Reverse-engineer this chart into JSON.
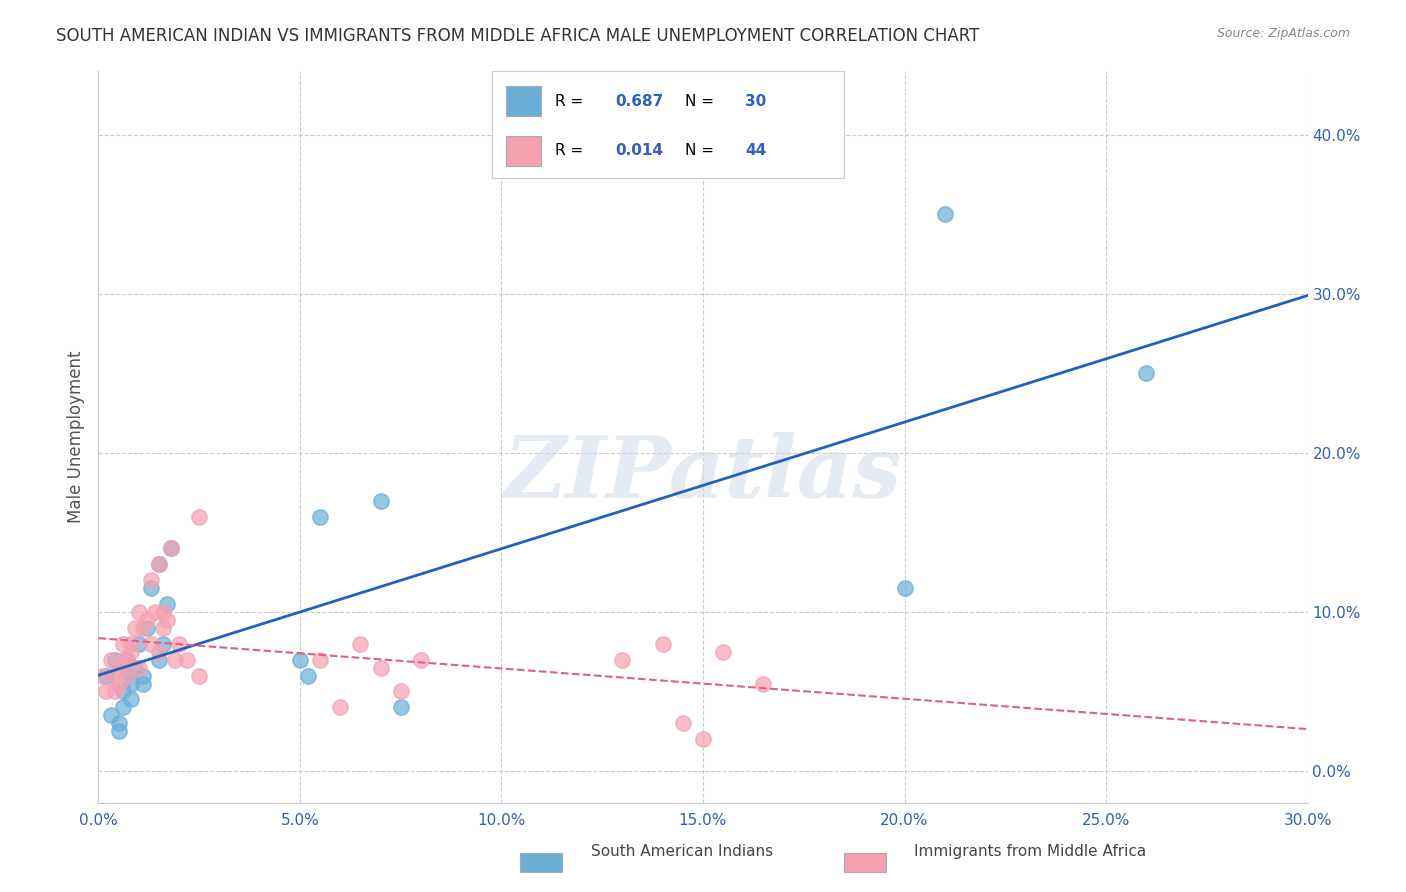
{
  "title": "SOUTH AMERICAN INDIAN VS IMMIGRANTS FROM MIDDLE AFRICA MALE UNEMPLOYMENT CORRELATION CHART",
  "source": "Source: ZipAtlas.com",
  "ylabel": "Male Unemployment",
  "watermark": "ZIPatlas",
  "xlim": [
    0.0,
    0.3
  ],
  "ylim": [
    -0.02,
    0.44
  ],
  "xticks": [
    0.0,
    0.05,
    0.1,
    0.15,
    0.2,
    0.25,
    0.3
  ],
  "yticks": [
    0.0,
    0.1,
    0.2,
    0.3,
    0.4
  ],
  "blue_R": 0.687,
  "blue_N": 30,
  "pink_R": 0.014,
  "pink_N": 44,
  "blue_color": "#6aaed6",
  "pink_color": "#f4a0b0",
  "blue_line_color": "#2060c0",
  "pink_line_color": "#e06080",
  "legend_label_blue": "South American Indians",
  "legend_label_pink": "Immigrants from Middle Africa",
  "blue_x": [
    0.002,
    0.003,
    0.004,
    0.005,
    0.005,
    0.006,
    0.006,
    0.007,
    0.007,
    0.008,
    0.008,
    0.009,
    0.01,
    0.011,
    0.011,
    0.012,
    0.013,
    0.015,
    0.015,
    0.016,
    0.017,
    0.018,
    0.05,
    0.052,
    0.055,
    0.07,
    0.075,
    0.2,
    0.21,
    0.26
  ],
  "blue_y": [
    0.06,
    0.035,
    0.07,
    0.025,
    0.03,
    0.04,
    0.05,
    0.06,
    0.07,
    0.045,
    0.055,
    0.065,
    0.08,
    0.06,
    0.055,
    0.09,
    0.115,
    0.13,
    0.07,
    0.08,
    0.105,
    0.14,
    0.07,
    0.06,
    0.16,
    0.17,
    0.04,
    0.115,
    0.35,
    0.25
  ],
  "pink_x": [
    0.001,
    0.002,
    0.003,
    0.004,
    0.004,
    0.005,
    0.005,
    0.006,
    0.006,
    0.007,
    0.007,
    0.008,
    0.008,
    0.009,
    0.01,
    0.01,
    0.011,
    0.012,
    0.013,
    0.013,
    0.014,
    0.015,
    0.015,
    0.016,
    0.016,
    0.017,
    0.018,
    0.019,
    0.02,
    0.022,
    0.025,
    0.025,
    0.055,
    0.06,
    0.065,
    0.07,
    0.075,
    0.08,
    0.13,
    0.14,
    0.145,
    0.15,
    0.155,
    0.165
  ],
  "pink_y": [
    0.06,
    0.05,
    0.07,
    0.05,
    0.06,
    0.055,
    0.065,
    0.07,
    0.08,
    0.06,
    0.07,
    0.075,
    0.08,
    0.09,
    0.065,
    0.1,
    0.09,
    0.095,
    0.08,
    0.12,
    0.1,
    0.13,
    0.075,
    0.09,
    0.1,
    0.095,
    0.14,
    0.07,
    0.08,
    0.07,
    0.06,
    0.16,
    0.07,
    0.04,
    0.08,
    0.065,
    0.05,
    0.07,
    0.07,
    0.08,
    0.03,
    0.02,
    0.075,
    0.055
  ],
  "background_color": "#ffffff",
  "grid_color": "#cccccc"
}
